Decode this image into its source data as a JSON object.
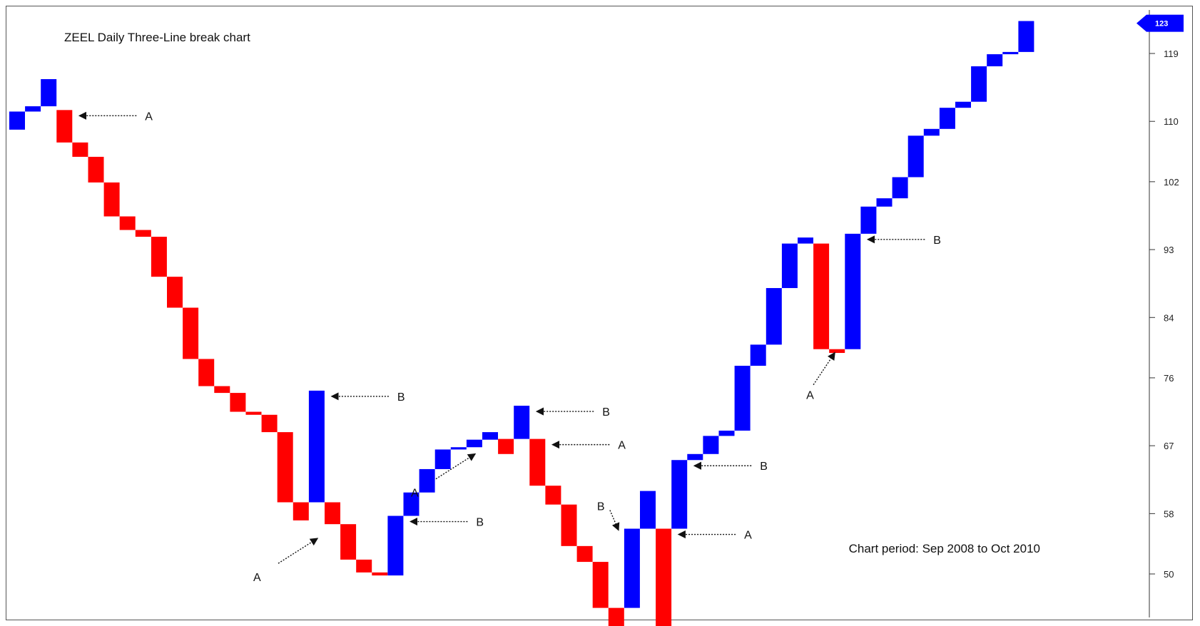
{
  "chart_data": {
    "type": "three-line-break",
    "title": "ZEEL Daily Three-Line break chart",
    "period_note": "Chart period: Sep 2008 to Oct 2010",
    "y_axis": {
      "ticks": [
        50,
        58,
        67,
        76,
        84,
        93,
        102,
        110,
        119
      ],
      "ylim": [
        45,
        124
      ],
      "position": "right"
    },
    "last_value": "123",
    "colors": {
      "up": "#0000ff",
      "down": "#ff0000",
      "last_value_marker": "#0000ff"
    },
    "lines": [
      {
        "dir": "up",
        "from": 108.9,
        "to": 111.3
      },
      {
        "dir": "up",
        "from": 111.3,
        "to": 112.0
      },
      {
        "dir": "up",
        "from": 112.0,
        "to": 115.6
      },
      {
        "dir": "down",
        "from": 111.5,
        "to": 107.2
      },
      {
        "dir": "down",
        "from": 107.2,
        "to": 105.3
      },
      {
        "dir": "down",
        "from": 105.3,
        "to": 101.9
      },
      {
        "dir": "down",
        "from": 101.9,
        "to": 97.4
      },
      {
        "dir": "down",
        "from": 97.4,
        "to": 95.6
      },
      {
        "dir": "down",
        "from": 95.6,
        "to": 94.7
      },
      {
        "dir": "down",
        "from": 94.7,
        "to": 89.4
      },
      {
        "dir": "down",
        "from": 89.4,
        "to": 85.3
      },
      {
        "dir": "down",
        "from": 85.3,
        "to": 78.5
      },
      {
        "dir": "down",
        "from": 78.5,
        "to": 74.9
      },
      {
        "dir": "down",
        "from": 74.9,
        "to": 74.0
      },
      {
        "dir": "down",
        "from": 74.0,
        "to": 71.5
      },
      {
        "dir": "down",
        "from": 71.5,
        "to": 71.1
      },
      {
        "dir": "down",
        "from": 71.1,
        "to": 68.8
      },
      {
        "dir": "down",
        "from": 68.8,
        "to": 59.5
      },
      {
        "dir": "down",
        "from": 59.5,
        "to": 57.1
      },
      {
        "dir": "up",
        "from": 59.5,
        "to": 74.3
      },
      {
        "dir": "down",
        "from": 59.5,
        "to": 56.6
      },
      {
        "dir": "down",
        "from": 56.6,
        "to": 51.9
      },
      {
        "dir": "down",
        "from": 51.9,
        "to": 50.2
      },
      {
        "dir": "down",
        "from": 50.2,
        "to": 49.8
      },
      {
        "dir": "up",
        "from": 49.8,
        "to": 57.7
      },
      {
        "dir": "up",
        "from": 57.7,
        "to": 60.8
      },
      {
        "dir": "up",
        "from": 60.8,
        "to": 63.9
      },
      {
        "dir": "up",
        "from": 63.9,
        "to": 66.5
      },
      {
        "dir": "up",
        "from": 66.5,
        "to": 66.8
      },
      {
        "dir": "up",
        "from": 66.8,
        "to": 67.8
      },
      {
        "dir": "up",
        "from": 67.8,
        "to": 68.8
      },
      {
        "dir": "down",
        "from": 67.9,
        "to": 65.9
      },
      {
        "dir": "up",
        "from": 67.9,
        "to": 72.3
      },
      {
        "dir": "down",
        "from": 67.9,
        "to": 61.7
      },
      {
        "dir": "down",
        "from": 61.7,
        "to": 59.2
      },
      {
        "dir": "down",
        "from": 59.2,
        "to": 53.7
      },
      {
        "dir": "down",
        "from": 53.7,
        "to": 51.6
      },
      {
        "dir": "down",
        "from": 51.6,
        "to": 45.5
      },
      {
        "dir": "down",
        "from": 45.5,
        "to": 42.1
      },
      {
        "dir": "up",
        "from": 45.5,
        "to": 56.0
      },
      {
        "dir": "up",
        "from": 56.0,
        "to": 61.0
      },
      {
        "dir": "down",
        "from": 56.0,
        "to": 41.5
      },
      {
        "dir": "up",
        "from": 56.0,
        "to": 65.1
      },
      {
        "dir": "up",
        "from": 65.1,
        "to": 65.9
      },
      {
        "dir": "up",
        "from": 65.9,
        "to": 68.3
      },
      {
        "dir": "up",
        "from": 68.3,
        "to": 69.0
      },
      {
        "dir": "up",
        "from": 69.0,
        "to": 77.6
      },
      {
        "dir": "up",
        "from": 77.6,
        "to": 80.4
      },
      {
        "dir": "up",
        "from": 80.4,
        "to": 87.9
      },
      {
        "dir": "up",
        "from": 87.9,
        "to": 93.8
      },
      {
        "dir": "up",
        "from": 93.8,
        "to": 94.6
      },
      {
        "dir": "down",
        "from": 93.8,
        "to": 79.8
      },
      {
        "dir": "down",
        "from": 79.8,
        "to": 79.3
      },
      {
        "dir": "up",
        "from": 79.8,
        "to": 95.1
      },
      {
        "dir": "up",
        "from": 95.1,
        "to": 98.7
      },
      {
        "dir": "up",
        "from": 98.7,
        "to": 99.8
      },
      {
        "dir": "up",
        "from": 99.8,
        "to": 102.6
      },
      {
        "dir": "up",
        "from": 102.6,
        "to": 108.1
      },
      {
        "dir": "up",
        "from": 108.1,
        "to": 109.0
      },
      {
        "dir": "up",
        "from": 109.0,
        "to": 111.8
      },
      {
        "dir": "up",
        "from": 111.8,
        "to": 112.6
      },
      {
        "dir": "up",
        "from": 112.6,
        "to": 117.3
      },
      {
        "dir": "up",
        "from": 117.3,
        "to": 118.9
      },
      {
        "dir": "up",
        "from": 118.9,
        "to": 119.2
      },
      {
        "dir": "up",
        "from": 119.2,
        "to": 123.3
      }
    ],
    "annotations": [
      {
        "label": "A",
        "line_index": 3,
        "side": "right",
        "style": "horizontal"
      },
      {
        "label": "B",
        "line_index": 19,
        "side": "right",
        "style": "horizontal"
      },
      {
        "label": "A",
        "line_index": 20,
        "side": "left",
        "style": "diagonal"
      },
      {
        "label": "B",
        "line_index": 24,
        "side": "right",
        "style": "horizontal"
      },
      {
        "label": "A",
        "line_index": 30,
        "side": "left",
        "style": "diagonal"
      },
      {
        "label": "B",
        "line_index": 32,
        "side": "right",
        "style": "horizontal"
      },
      {
        "label": "A",
        "line_index": 33,
        "side": "right",
        "style": "horizontal"
      },
      {
        "label": "B",
        "line_index": 39,
        "side": "left",
        "style": "short-diagonal"
      },
      {
        "label": "A",
        "line_index": 41,
        "side": "right",
        "style": "horizontal"
      },
      {
        "label": "B",
        "line_index": 42,
        "side": "right",
        "style": "horizontal"
      },
      {
        "label": "A",
        "line_index": 51,
        "side": "left",
        "style": "diagonal-up"
      },
      {
        "label": "B",
        "line_index": 53,
        "side": "right",
        "style": "horizontal"
      }
    ]
  }
}
